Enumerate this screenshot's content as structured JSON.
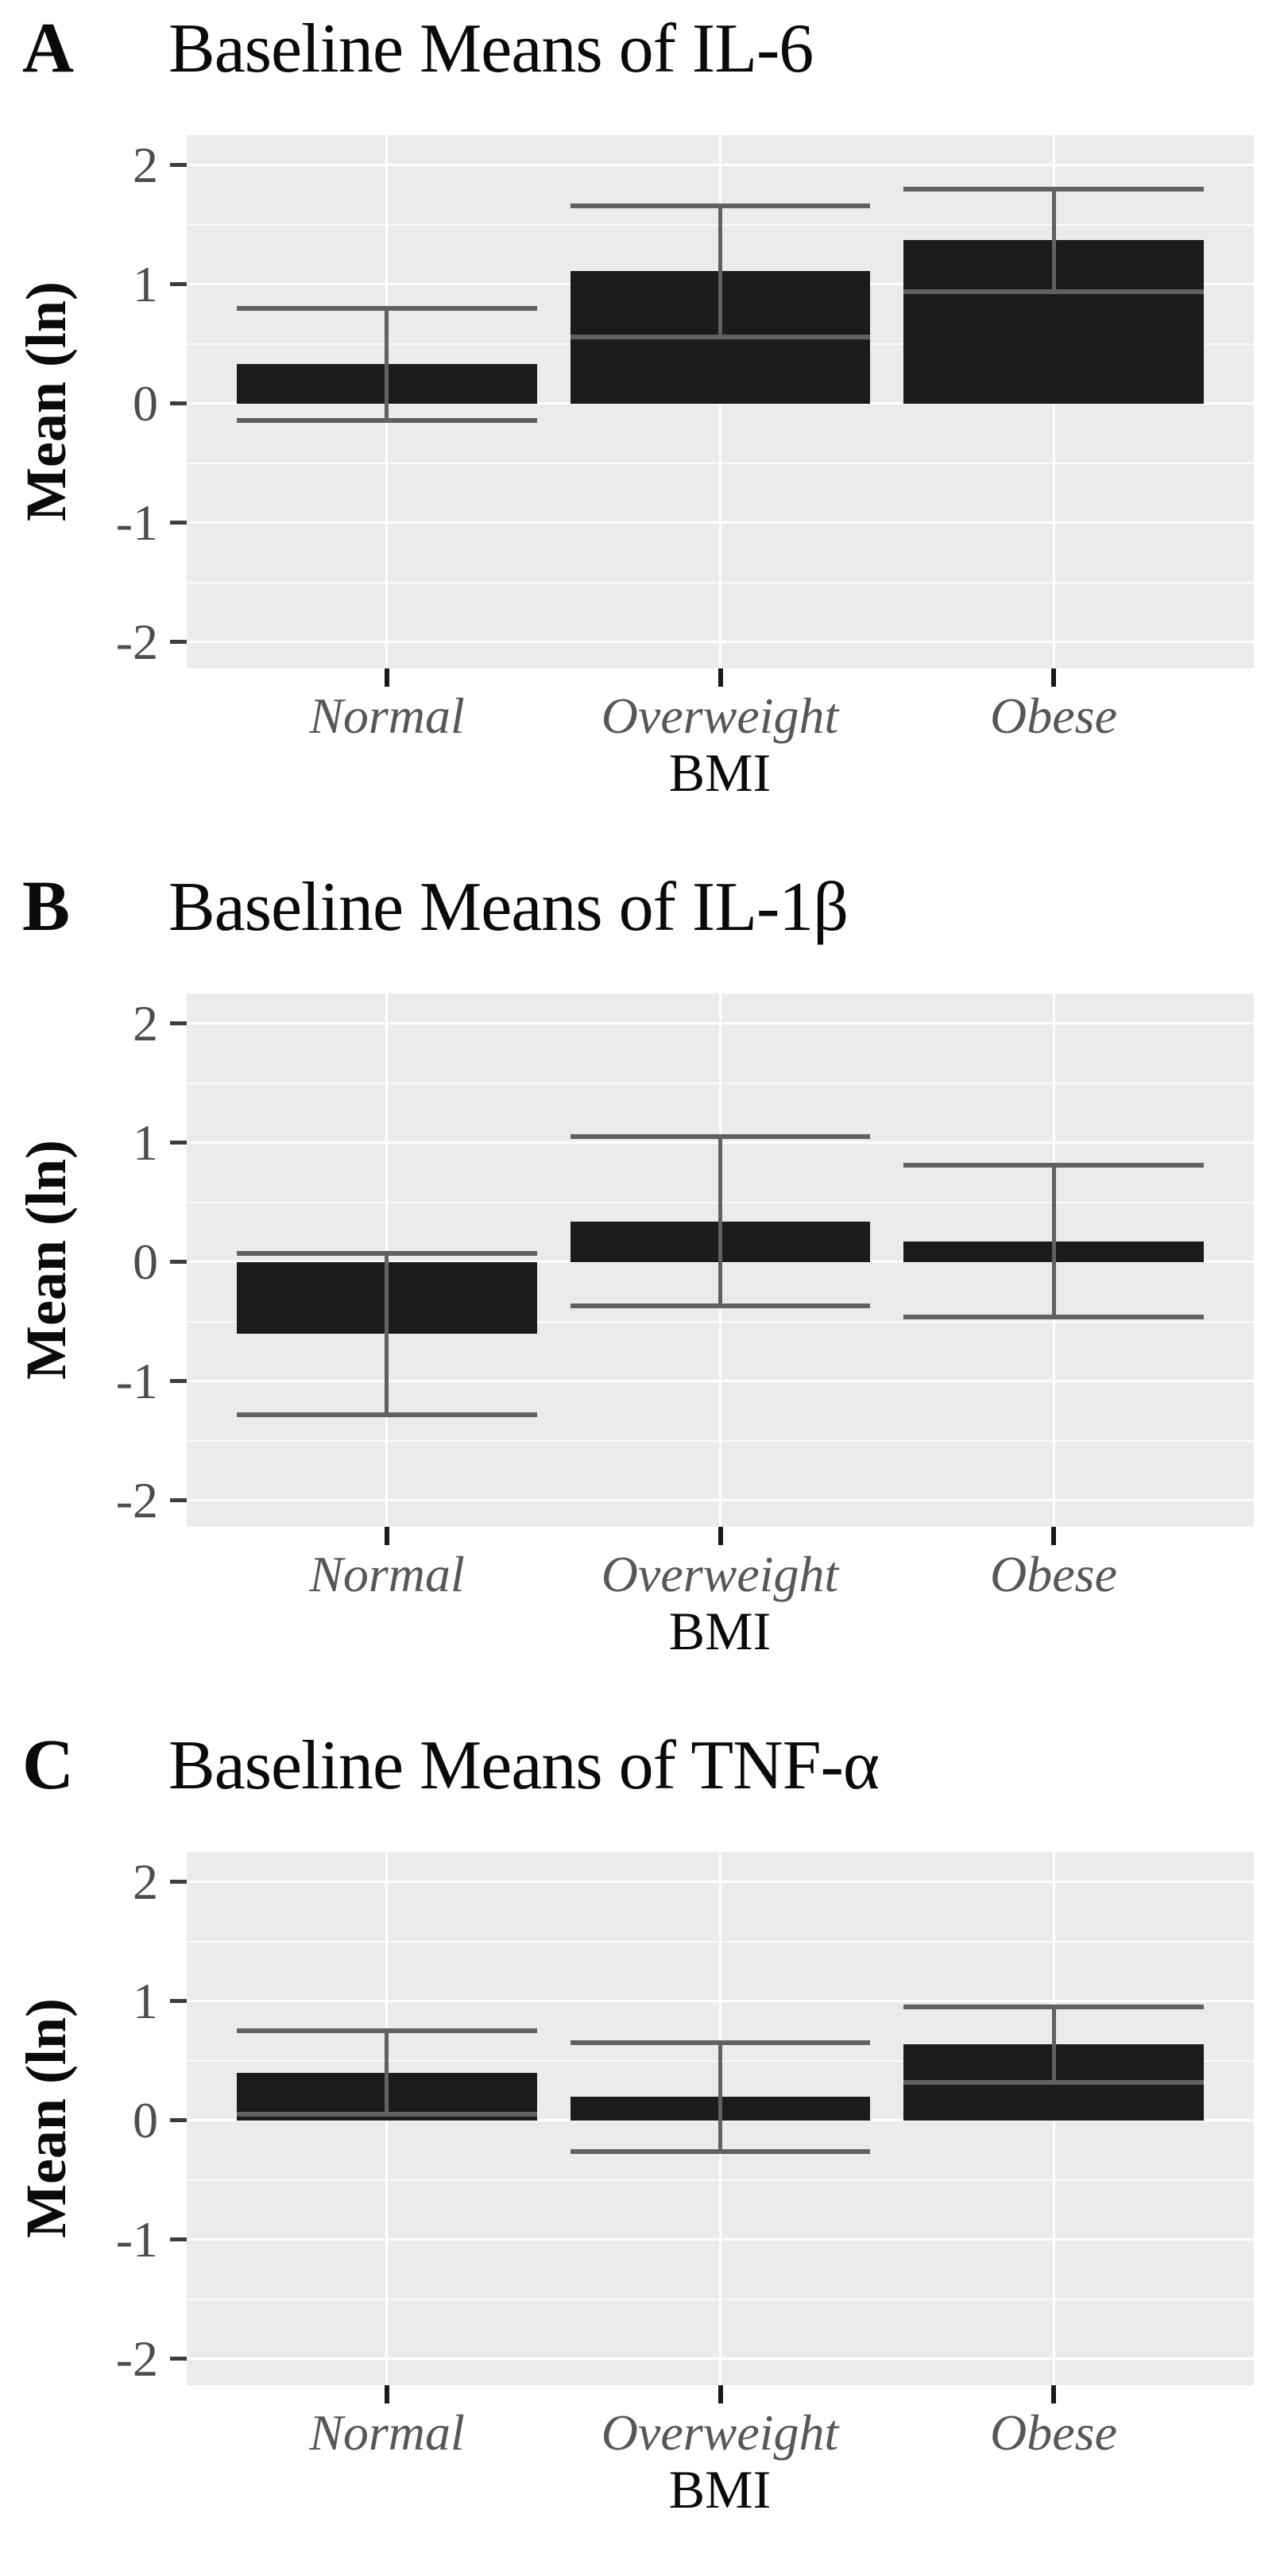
{
  "figure": {
    "colors": {
      "panel_bg": "#ebebeb",
      "grid": "#ffffff",
      "bar": "#1d1a1b",
      "error_bar": "#616161",
      "tick_text": "#4d4d4d",
      "category_text": "#575757",
      "text": "#0a0a0a"
    }
  },
  "chart_data": [
    {
      "type": "bar",
      "panel_label": "A",
      "title": "Baseline Means of IL-6",
      "xlabel": "BMI",
      "ylabel": "Mean (ln)",
      "categories": [
        "Normal",
        "Overweight",
        "Obese"
      ],
      "values": [
        0.33,
        1.11,
        1.37
      ],
      "error_low": [
        -0.14,
        0.56,
        0.94
      ],
      "error_high": [
        0.8,
        1.66,
        1.8
      ],
      "yticks": [
        2,
        1,
        0,
        -1,
        -2
      ],
      "ylim": [
        -2.22,
        2.25
      ],
      "grid": "on",
      "legend": "none"
    },
    {
      "type": "bar",
      "panel_label": "B",
      "title": "Baseline Means of IL-1β",
      "xlabel": "BMI",
      "ylabel": "Mean (ln)",
      "categories": [
        "Normal",
        "Overweight",
        "Obese"
      ],
      "values": [
        -0.6,
        0.34,
        0.17
      ],
      "error_low": [
        -1.28,
        -0.37,
        -0.46
      ],
      "error_high": [
        0.07,
        1.05,
        0.81
      ],
      "yticks": [
        2,
        1,
        0,
        -1,
        -2
      ],
      "ylim": [
        -2.22,
        2.25
      ],
      "grid": "on",
      "legend": "none"
    },
    {
      "type": "bar",
      "panel_label": "C",
      "title": "Baseline Means of TNF-α",
      "xlabel": "BMI",
      "ylabel": "Mean (ln)",
      "categories": [
        "Normal",
        "Overweight",
        "Obese"
      ],
      "values": [
        0.4,
        0.2,
        0.64
      ],
      "error_low": [
        0.05,
        -0.26,
        0.32
      ],
      "error_high": [
        0.75,
        0.65,
        0.95
      ],
      "yticks": [
        2,
        1,
        0,
        -1,
        -2
      ],
      "ylim": [
        -2.22,
        2.25
      ],
      "grid": "on",
      "legend": "none"
    }
  ]
}
